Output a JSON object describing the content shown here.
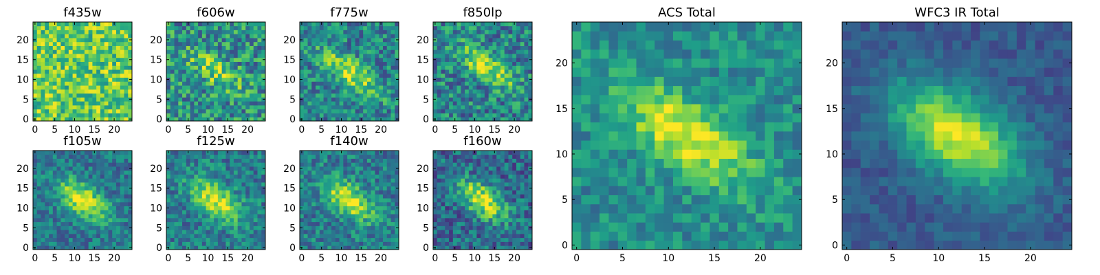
{
  "chart_data": [
    {
      "type": "heatmap",
      "title": "f435w",
      "colormap": "viridis",
      "grid": false,
      "x": {
        "range": [
          -0.5,
          24.5
        ],
        "ticks": [
          0,
          5,
          10,
          15,
          20
        ]
      },
      "y": {
        "range": [
          -0.5,
          24.5
        ],
        "ticks": [
          0,
          5,
          10,
          15,
          20
        ]
      },
      "image": {
        "size": [
          25,
          25
        ],
        "background_level": 0.75,
        "noise": 0.25,
        "source": {
          "center": [
            12,
            12
          ],
          "peak": 0.0,
          "major_sigma": 5,
          "minor_sigma": 2,
          "angle_deg": -35
        }
      }
    },
    {
      "type": "heatmap",
      "title": "f606w",
      "colormap": "viridis",
      "grid": false,
      "x": {
        "range": [
          -0.5,
          24.5
        ],
        "ticks": [
          0,
          5,
          10,
          15,
          20
        ]
      },
      "y": {
        "range": [
          -0.5,
          24.5
        ],
        "ticks": [
          0,
          5,
          10,
          15,
          20
        ]
      },
      "image": {
        "size": [
          25,
          25
        ],
        "background_level": 0.5,
        "noise": 0.28,
        "source": {
          "center": [
            12,
            12
          ],
          "peak": 0.35,
          "major_sigma": 6,
          "minor_sigma": 2,
          "angle_deg": -35
        }
      }
    },
    {
      "type": "heatmap",
      "title": "f775w",
      "colormap": "viridis",
      "grid": false,
      "x": {
        "range": [
          -0.5,
          24.5
        ],
        "ticks": [
          0,
          5,
          10,
          15,
          20
        ]
      },
      "y": {
        "range": [
          -0.5,
          24.5
        ],
        "ticks": [
          0,
          5,
          10,
          15,
          20
        ]
      },
      "image": {
        "size": [
          25,
          25
        ],
        "background_level": 0.45,
        "noise": 0.24,
        "source": {
          "center": [
            12,
            12
          ],
          "peak": 0.5,
          "major_sigma": 6,
          "minor_sigma": 2,
          "angle_deg": -35
        }
      }
    },
    {
      "type": "heatmap",
      "title": "f850lp",
      "colormap": "viridis",
      "grid": false,
      "x": {
        "range": [
          -0.5,
          24.5
        ],
        "ticks": [
          0,
          5,
          10,
          15,
          20
        ]
      },
      "y": {
        "range": [
          -0.5,
          24.5
        ],
        "ticks": [
          0,
          5,
          10,
          15,
          20
        ]
      },
      "image": {
        "size": [
          25,
          25
        ],
        "background_level": 0.45,
        "noise": 0.26,
        "source": {
          "center": [
            13,
            13
          ],
          "peak": 0.45,
          "major_sigma": 6,
          "minor_sigma": 2,
          "angle_deg": -35
        }
      }
    },
    {
      "type": "heatmap",
      "title": "f105w",
      "colormap": "viridis",
      "grid": false,
      "x": {
        "range": [
          -0.5,
          24.5
        ],
        "ticks": [
          0,
          5,
          10,
          15,
          20
        ]
      },
      "y": {
        "range": [
          -0.5,
          24.5
        ],
        "ticks": [
          0,
          5,
          10,
          15,
          20
        ]
      },
      "image": {
        "size": [
          25,
          25
        ],
        "background_level": 0.4,
        "noise": 0.18,
        "source": {
          "center": [
            12,
            12
          ],
          "peak": 0.6,
          "major_sigma": 5,
          "minor_sigma": 2.5,
          "angle_deg": -35
        }
      }
    },
    {
      "type": "heatmap",
      "title": "f125w",
      "colormap": "viridis",
      "grid": false,
      "x": {
        "range": [
          -0.5,
          24.5
        ],
        "ticks": [
          0,
          5,
          10,
          15,
          20
        ]
      },
      "y": {
        "range": [
          -0.5,
          24.5
        ],
        "ticks": [
          0,
          5,
          10,
          15,
          20
        ]
      },
      "image": {
        "size": [
          25,
          25
        ],
        "background_level": 0.42,
        "noise": 0.2,
        "source": {
          "center": [
            12,
            12
          ],
          "peak": 0.55,
          "major_sigma": 5,
          "minor_sigma": 2.5,
          "angle_deg": -35
        }
      }
    },
    {
      "type": "heatmap",
      "title": "f140w",
      "colormap": "viridis",
      "grid": false,
      "x": {
        "range": [
          -0.5,
          24.5
        ],
        "ticks": [
          0,
          5,
          10,
          15,
          20
        ]
      },
      "y": {
        "range": [
          -0.5,
          24.5
        ],
        "ticks": [
          0,
          5,
          10,
          15,
          20
        ]
      },
      "image": {
        "size": [
          25,
          25
        ],
        "background_level": 0.42,
        "noise": 0.2,
        "source": {
          "center": [
            12,
            12
          ],
          "peak": 0.55,
          "major_sigma": 5,
          "minor_sigma": 2.5,
          "angle_deg": -35
        }
      }
    },
    {
      "type": "heatmap",
      "title": "f160w",
      "colormap": "viridis",
      "grid": false,
      "x": {
        "range": [
          -0.5,
          24.5
        ],
        "ticks": [
          0,
          5,
          10,
          15,
          20
        ]
      },
      "y": {
        "range": [
          -0.5,
          24.5
        ],
        "ticks": [
          0,
          5,
          10,
          15,
          20
        ]
      },
      "image": {
        "size": [
          25,
          25
        ],
        "background_level": 0.35,
        "noise": 0.22,
        "source": {
          "center": [
            12,
            12
          ],
          "peak": 0.6,
          "major_sigma": 5,
          "minor_sigma": 2.5,
          "angle_deg": -35
        }
      }
    },
    {
      "type": "heatmap",
      "title": "ACS Total",
      "colormap": "viridis",
      "grid": false,
      "x": {
        "range": [
          -0.5,
          24.5
        ],
        "ticks": [
          0,
          5,
          10,
          15,
          20
        ]
      },
      "y": {
        "range": [
          -0.5,
          24.5
        ],
        "ticks": [
          0,
          5,
          10,
          15,
          20
        ]
      },
      "image": {
        "size": [
          25,
          25
        ],
        "background_level": 0.48,
        "noise": 0.16,
        "source": {
          "center": [
            12,
            12
          ],
          "peak": 0.5,
          "major_sigma": 6,
          "minor_sigma": 2.5,
          "angle_deg": -35
        }
      }
    },
    {
      "type": "heatmap",
      "title": "WFC3 IR Total",
      "colormap": "viridis",
      "grid": false,
      "x": {
        "range": [
          -0.5,
          24.5
        ],
        "ticks": [
          0,
          5,
          10,
          15,
          20
        ]
      },
      "y": {
        "range": [
          -0.5,
          24.5
        ],
        "ticks": [
          0,
          5,
          10,
          15,
          20
        ]
      },
      "image": {
        "size": [
          25,
          25
        ],
        "background_level": 0.28,
        "noise": 0.09,
        "source": {
          "center": [
            12,
            12
          ],
          "peak": 0.68,
          "major_sigma": 5.5,
          "minor_sigma": 3,
          "angle_deg": -35
        }
      }
    }
  ]
}
